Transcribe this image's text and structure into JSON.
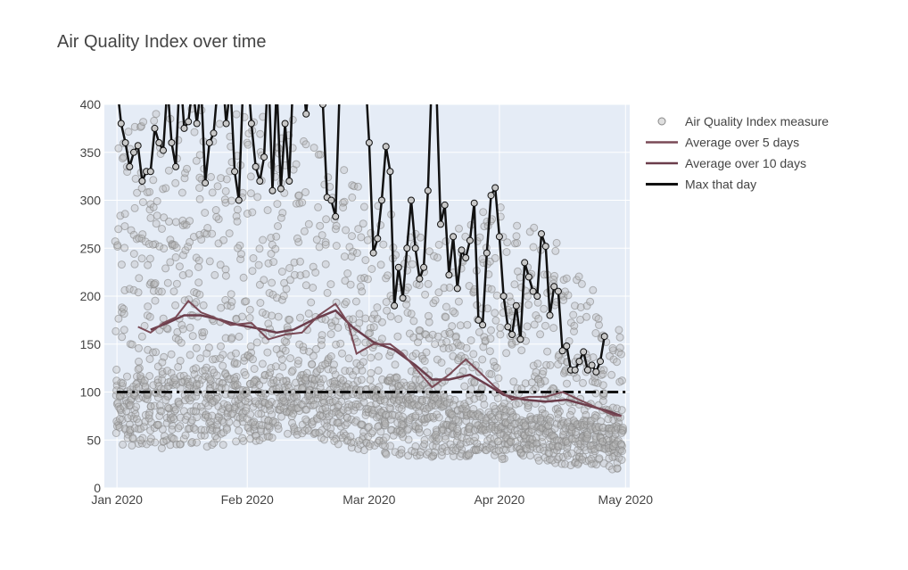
{
  "chart_data": {
    "type": "line",
    "title": "Air Quality Index over time",
    "xlabel": "",
    "ylabel": "",
    "x_range": [
      "2019-12-29",
      "2020-05-02"
    ],
    "ylim": [
      0,
      400
    ],
    "grid": true,
    "legend_position": "top-right",
    "background": "#e5ecf6",
    "x_ticks": [
      {
        "date": "2020-01-01",
        "label": "Jan 2020"
      },
      {
        "date": "2020-02-01",
        "label": "Feb 2020"
      },
      {
        "date": "2020-03-01",
        "label": "Mar 2020"
      },
      {
        "date": "2020-04-01",
        "label": "Apr 2020"
      },
      {
        "date": "2020-05-01",
        "label": "May 2020"
      }
    ],
    "y_ticks": [
      0,
      50,
      100,
      150,
      200,
      250,
      300,
      350,
      400
    ],
    "reference_line": {
      "y": 100,
      "x_start": "2020-01-01",
      "x_end": "2020-05-01",
      "style": "dashdot",
      "color": "#111111"
    },
    "series": [
      {
        "name": "Air Quality Index measure",
        "kind": "markers",
        "color": "#b8b8b8",
        "x_start": "2020-01-01",
        "x_end": "2020-04-30",
        "approx_points_per_day": 20,
        "pattern": [
          {
            "date": "2020-01-01",
            "low": 45,
            "median": 100,
            "high": 400
          },
          {
            "date": "2020-01-15",
            "low": 40,
            "median": 110,
            "high": 400
          },
          {
            "date": "2020-02-01",
            "low": 45,
            "median": 105,
            "high": 400
          },
          {
            "date": "2020-02-15",
            "low": 55,
            "median": 115,
            "high": 380
          },
          {
            "date": "2020-03-01",
            "low": 35,
            "median": 100,
            "high": 300
          },
          {
            "date": "2020-03-15",
            "low": 30,
            "median": 90,
            "high": 260
          },
          {
            "date": "2020-04-01",
            "low": 30,
            "median": 75,
            "high": 300
          },
          {
            "date": "2020-04-15",
            "low": 25,
            "median": 70,
            "high": 260
          },
          {
            "date": "2020-04-30",
            "low": 18,
            "median": 60,
            "high": 160
          }
        ]
      },
      {
        "name": "Average over 5 days",
        "kind": "line",
        "color": "#7a4a56",
        "points": [
          [
            "2020-01-06",
            168
          ],
          [
            "2020-01-09",
            162
          ],
          [
            "2020-01-12",
            172
          ],
          [
            "2020-01-15",
            178
          ],
          [
            "2020-01-18",
            195
          ],
          [
            "2020-01-21",
            183
          ],
          [
            "2020-01-24",
            178
          ],
          [
            "2020-01-28",
            170
          ],
          [
            "2020-02-02",
            172
          ],
          [
            "2020-02-06",
            155
          ],
          [
            "2020-02-10",
            160
          ],
          [
            "2020-02-14",
            162
          ],
          [
            "2020-02-18",
            180
          ],
          [
            "2020-02-22",
            192
          ],
          [
            "2020-02-25",
            172
          ],
          [
            "2020-02-27",
            140
          ],
          [
            "2020-03-02",
            150
          ],
          [
            "2020-03-06",
            150
          ],
          [
            "2020-03-09",
            140
          ],
          [
            "2020-03-12",
            125
          ],
          [
            "2020-03-16",
            105
          ],
          [
            "2020-03-20",
            118
          ],
          [
            "2020-03-24",
            134
          ],
          [
            "2020-03-27",
            122
          ],
          [
            "2020-03-31",
            105
          ],
          [
            "2020-04-04",
            92
          ],
          [
            "2020-04-08",
            95
          ],
          [
            "2020-04-12",
            95
          ],
          [
            "2020-04-16",
            100
          ],
          [
            "2020-04-20",
            92
          ],
          [
            "2020-04-24",
            84
          ],
          [
            "2020-04-28",
            76
          ],
          [
            "2020-04-30",
            75
          ]
        ]
      },
      {
        "name": "Average over 10 days",
        "kind": "line",
        "color": "#6b3d4b",
        "points": [
          [
            "2020-01-09",
            165
          ],
          [
            "2020-01-13",
            172
          ],
          [
            "2020-01-17",
            180
          ],
          [
            "2020-01-21",
            180
          ],
          [
            "2020-01-25",
            176
          ],
          [
            "2020-01-30",
            170
          ],
          [
            "2020-02-04",
            166
          ],
          [
            "2020-02-08",
            162
          ],
          [
            "2020-02-12",
            165
          ],
          [
            "2020-02-17",
            176
          ],
          [
            "2020-02-22",
            185
          ],
          [
            "2020-02-26",
            168
          ],
          [
            "2020-03-02",
            152
          ],
          [
            "2020-03-07",
            144
          ],
          [
            "2020-03-12",
            128
          ],
          [
            "2020-03-16",
            113
          ],
          [
            "2020-03-20",
            113
          ],
          [
            "2020-03-25",
            118
          ],
          [
            "2020-03-29",
            108
          ],
          [
            "2020-04-02",
            97
          ],
          [
            "2020-04-07",
            92
          ],
          [
            "2020-04-12",
            90
          ],
          [
            "2020-04-17",
            92
          ],
          [
            "2020-04-22",
            86
          ],
          [
            "2020-04-27",
            80
          ],
          [
            "2020-04-30",
            75
          ]
        ]
      },
      {
        "name": "Max that day",
        "kind": "line+markers",
        "color": "#111111",
        "points": [
          [
            "2020-01-01",
            420
          ],
          [
            "2020-01-02",
            380
          ],
          [
            "2020-01-03",
            360
          ],
          [
            "2020-01-04",
            335
          ],
          [
            "2020-01-05",
            350
          ],
          [
            "2020-01-06",
            357
          ],
          [
            "2020-01-07",
            320
          ],
          [
            "2020-01-08",
            330
          ],
          [
            "2020-01-09",
            330
          ],
          [
            "2020-01-10",
            375
          ],
          [
            "2020-01-11",
            360
          ],
          [
            "2020-01-12",
            352
          ],
          [
            "2020-01-13",
            420
          ],
          [
            "2020-01-14",
            360
          ],
          [
            "2020-01-15",
            335
          ],
          [
            "2020-01-16",
            440
          ],
          [
            "2020-01-17",
            375
          ],
          [
            "2020-01-18",
            382
          ],
          [
            "2020-01-19",
            420
          ],
          [
            "2020-01-20",
            380
          ],
          [
            "2020-01-21",
            420
          ],
          [
            "2020-01-22",
            318
          ],
          [
            "2020-01-23",
            360
          ],
          [
            "2020-01-24",
            370
          ],
          [
            "2020-01-25",
            420
          ],
          [
            "2020-01-26",
            440
          ],
          [
            "2020-01-27",
            380
          ],
          [
            "2020-01-28",
            420
          ],
          [
            "2020-01-29",
            330
          ],
          [
            "2020-01-30",
            300
          ],
          [
            "2020-01-31",
            420
          ],
          [
            "2020-02-01",
            440
          ],
          [
            "2020-02-02",
            380
          ],
          [
            "2020-02-03",
            335
          ],
          [
            "2020-02-04",
            320
          ],
          [
            "2020-02-05",
            345
          ],
          [
            "2020-02-06",
            440
          ],
          [
            "2020-02-07",
            310
          ],
          [
            "2020-02-08",
            420
          ],
          [
            "2020-02-09",
            312
          ],
          [
            "2020-02-10",
            380
          ],
          [
            "2020-02-11",
            320
          ],
          [
            "2020-02-12",
            440
          ],
          [
            "2020-02-13",
            420
          ],
          [
            "2020-02-14",
            440
          ],
          [
            "2020-02-15",
            390
          ],
          [
            "2020-02-16",
            440
          ],
          [
            "2020-02-17",
            420
          ],
          [
            "2020-02-18",
            440
          ],
          [
            "2020-02-19",
            400
          ],
          [
            "2020-02-20",
            303
          ],
          [
            "2020-02-21",
            300
          ],
          [
            "2020-02-22",
            283
          ],
          [
            "2020-02-23",
            420
          ],
          [
            "2020-02-24",
            440
          ],
          [
            "2020-02-25",
            420
          ],
          [
            "2020-02-26",
            440
          ],
          [
            "2020-02-27",
            420
          ],
          [
            "2020-02-28",
            440
          ],
          [
            "2020-02-29",
            440
          ],
          [
            "2020-03-01",
            360
          ],
          [
            "2020-03-02",
            245
          ],
          [
            "2020-03-03",
            260
          ],
          [
            "2020-03-04",
            300
          ],
          [
            "2020-03-05",
            356
          ],
          [
            "2020-03-06",
            330
          ],
          [
            "2020-03-07",
            190
          ],
          [
            "2020-03-08",
            230
          ],
          [
            "2020-03-09",
            198
          ],
          [
            "2020-03-10",
            250
          ],
          [
            "2020-03-11",
            300
          ],
          [
            "2020-03-12",
            250
          ],
          [
            "2020-03-13",
            218
          ],
          [
            "2020-03-14",
            230
          ],
          [
            "2020-03-15",
            310
          ],
          [
            "2020-03-16",
            440
          ],
          [
            "2020-03-17",
            420
          ],
          [
            "2020-03-18",
            275
          ],
          [
            "2020-03-19",
            295
          ],
          [
            "2020-03-20",
            222
          ],
          [
            "2020-03-21",
            262
          ],
          [
            "2020-03-22",
            208
          ],
          [
            "2020-03-23",
            248
          ],
          [
            "2020-03-24",
            240
          ],
          [
            "2020-03-25",
            258
          ],
          [
            "2020-03-26",
            297
          ],
          [
            "2020-03-27",
            175
          ],
          [
            "2020-03-28",
            170
          ],
          [
            "2020-03-29",
            245
          ],
          [
            "2020-03-30",
            305
          ],
          [
            "2020-03-31",
            313
          ],
          [
            "2020-04-01",
            262
          ],
          [
            "2020-04-02",
            200
          ],
          [
            "2020-04-03",
            168
          ],
          [
            "2020-04-04",
            160
          ],
          [
            "2020-04-05",
            190
          ],
          [
            "2020-04-06",
            155
          ],
          [
            "2020-04-07",
            235
          ],
          [
            "2020-04-08",
            220
          ],
          [
            "2020-04-09",
            205
          ],
          [
            "2020-04-10",
            200
          ],
          [
            "2020-04-11",
            265
          ],
          [
            "2020-04-12",
            252
          ],
          [
            "2020-04-13",
            180
          ],
          [
            "2020-04-14",
            210
          ],
          [
            "2020-04-15",
            205
          ],
          [
            "2020-04-16",
            143
          ],
          [
            "2020-04-17",
            148
          ],
          [
            "2020-04-18",
            123
          ],
          [
            "2020-04-19",
            123
          ],
          [
            "2020-04-20",
            132
          ],
          [
            "2020-04-21",
            142
          ],
          [
            "2020-04-22",
            123
          ],
          [
            "2020-04-23",
            128
          ],
          [
            "2020-04-24",
            121
          ],
          [
            "2020-04-25",
            132
          ],
          [
            "2020-04-26",
            158
          ]
        ]
      }
    ]
  }
}
